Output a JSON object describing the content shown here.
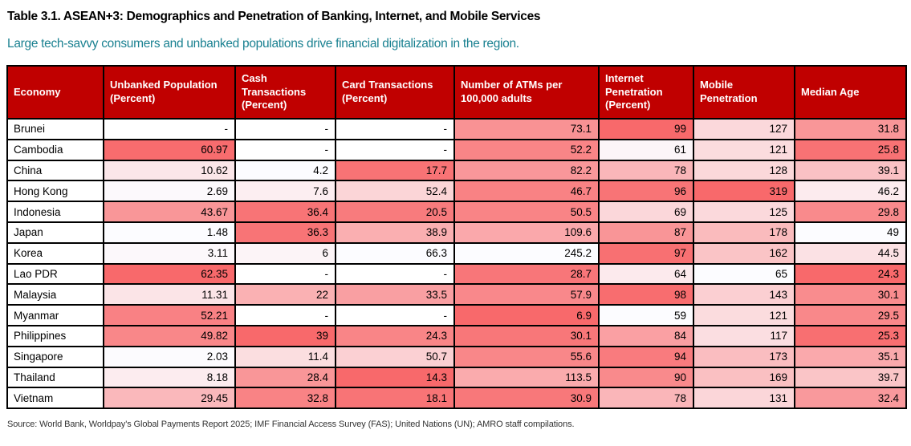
{
  "chart_data": {
    "type": "table",
    "subtype": "heatmap",
    "title": "Table 3.1. ASEAN+3: Demographics and Penetration of Banking, Internet, and Mobile Services",
    "subtitle": "Large tech-savvy consumers and unbanked populations drive financial digitalization in the region.",
    "source": "Source: World Bank, Worldpay's Global Payments Report 2025; IMF Financial Access Survey (FAS); United Nations (UN); AMRO staff compilations.",
    "missing_marker": "-",
    "columns": [
      {
        "key": "economy",
        "label": "Economy",
        "kind": "label"
      },
      {
        "key": "unbanked",
        "label": "Unbanked Population (Percent)",
        "kind": "heat",
        "red_end": "high"
      },
      {
        "key": "cash",
        "label": "Cash Transactions (Percent)",
        "kind": "heat",
        "red_end": "high"
      },
      {
        "key": "card",
        "label": "Card Transactions (Percent)",
        "kind": "heat",
        "red_end": "low"
      },
      {
        "key": "atms",
        "label": "Number of ATMs per 100,000 adults",
        "kind": "heat",
        "red_end": "low"
      },
      {
        "key": "internet",
        "label": "Internet Penetration (Percent)",
        "kind": "heat",
        "red_end": "high"
      },
      {
        "key": "mobile",
        "label": "Mobile Penetration",
        "kind": "heat",
        "red_end": "high"
      },
      {
        "key": "median_age",
        "label": "Median Age",
        "kind": "heat",
        "red_end": "low"
      }
    ],
    "rows": [
      {
        "economy": "Brunei",
        "values": [
          "-",
          "-",
          "-",
          "73.1",
          "99",
          "127",
          "31.8"
        ]
      },
      {
        "economy": "Cambodia",
        "values": [
          "60.97",
          "-",
          "-",
          "52.2",
          "61",
          "121",
          "25.8"
        ]
      },
      {
        "economy": "China",
        "values": [
          "10.62",
          "4.2",
          "17.7",
          "82.2",
          "78",
          "128",
          "39.1"
        ]
      },
      {
        "economy": "Hong Kong",
        "values": [
          "2.69",
          "7.6",
          "52.4",
          "46.7",
          "96",
          "319",
          "46.2"
        ]
      },
      {
        "economy": "Indonesia",
        "values": [
          "43.67",
          "36.4",
          "20.5",
          "50.5",
          "69",
          "125",
          "29.8"
        ]
      },
      {
        "economy": "Japan",
        "values": [
          "1.48",
          "36.3",
          "38.9",
          "109.6",
          "87",
          "178",
          "49"
        ]
      },
      {
        "economy": "Korea",
        "values": [
          "3.11",
          "6",
          "66.3",
          "245.2",
          "97",
          "162",
          "44.5"
        ]
      },
      {
        "economy": "Lao PDR",
        "values": [
          "62.35",
          "-",
          "-",
          "28.7",
          "64",
          "65",
          "24.3"
        ]
      },
      {
        "economy": "Malaysia",
        "values": [
          "11.31",
          "22",
          "33.5",
          "57.9",
          "98",
          "143",
          "30.1"
        ]
      },
      {
        "economy": "Myanmar",
        "values": [
          "52.21",
          "-",
          "-",
          "6.9",
          "59",
          "121",
          "29.5"
        ]
      },
      {
        "economy": "Philippines",
        "values": [
          "49.82",
          "39",
          "24.3",
          "30.1",
          "84",
          "117",
          "25.3"
        ]
      },
      {
        "economy": "Singapore",
        "values": [
          "2.03",
          "11.4",
          "50.7",
          "55.6",
          "94",
          "173",
          "35.1"
        ]
      },
      {
        "economy": "Thailand",
        "values": [
          "8.18",
          "28.4",
          "14.3",
          "113.5",
          "90",
          "169",
          "39.7"
        ]
      },
      {
        "economy": "Vietnam",
        "values": [
          "29.45",
          "32.8",
          "18.1",
          "30.9",
          "78",
          "131",
          "32.4"
        ]
      }
    ],
    "heatmap": {
      "low_color": "#FCFCFF",
      "high_color": "#F8696B",
      "missing_color": "#FFFFFF",
      "scale_note": "per-column linear scale between column min and max"
    }
  },
  "colors": {
    "header_bg": "#C00000",
    "header_text": "#FFFFFF",
    "subtitle_teal": "#1A8191",
    "grid": "#000000"
  }
}
